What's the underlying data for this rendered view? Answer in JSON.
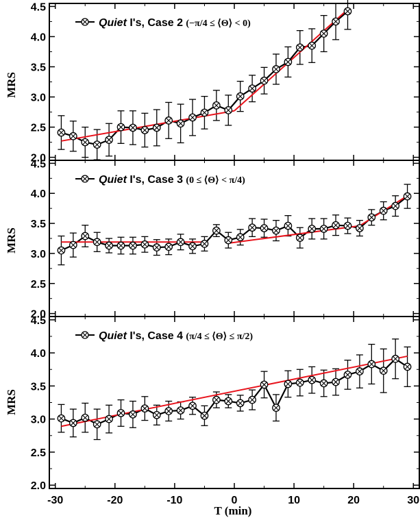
{
  "chart_data": {
    "type": "line",
    "xlabel": "T (min)",
    "ylabel": "MRS",
    "xlim": [
      -31,
      31
    ],
    "ylim": [
      1.95,
      4.55
    ],
    "x_ticks": [
      "-30",
      "-20",
      "-10",
      "0",
      "10",
      "20",
      "30"
    ],
    "y_ticks": [
      "2.0",
      "2.5",
      "3.0",
      "3.5",
      "4.0",
      "4.5"
    ],
    "grid": false,
    "legend_placement": "top-left",
    "colors": {
      "data": "#000000",
      "fit": "#e8141d"
    },
    "marker": "circle-cross",
    "panels": [
      {
        "legend": {
          "italic": "Quiet",
          "rest": " I's, Case 2",
          "condition": "(−π/4 ≤ ⟨Θ⟩ < 0)"
        },
        "x": [
          -29,
          -27,
          -25,
          -23,
          -21,
          -19,
          -17,
          -15,
          -13,
          -11,
          -9,
          -7,
          -5,
          -3,
          -1,
          1,
          3,
          5,
          7,
          9,
          11,
          13,
          15,
          17,
          19
        ],
        "y": [
          2.41,
          2.35,
          2.25,
          2.21,
          2.29,
          2.5,
          2.49,
          2.45,
          2.49,
          2.61,
          2.56,
          2.66,
          2.74,
          2.86,
          2.78,
          3.01,
          3.14,
          3.27,
          3.46,
          3.58,
          3.82,
          3.85,
          4.05,
          4.25,
          4.42
        ],
        "err": [
          0.28,
          0.25,
          0.25,
          0.25,
          0.27,
          0.27,
          0.28,
          0.28,
          0.3,
          0.3,
          0.32,
          0.3,
          0.27,
          0.25,
          0.25,
          0.25,
          0.22,
          0.22,
          0.25,
          0.25,
          0.28,
          0.28,
          0.3,
          0.3,
          0.3
        ],
        "fit": [
          [
            [
              -29,
              2.27
            ],
            [
              0,
              2.77
            ]
          ],
          [
            [
              0,
              2.77
            ],
            [
              19,
              4.45
            ]
          ]
        ]
      },
      {
        "legend": {
          "italic": "Quiet",
          "rest": " I's, Case 3",
          "condition": "(0 ≤ ⟨Θ⟩ < π/4)"
        },
        "x": [
          -29,
          -27,
          -25,
          -23,
          -21,
          -19,
          -17,
          -15,
          -13,
          -11,
          -9,
          -7,
          -5,
          -3,
          -1,
          1,
          3,
          5,
          7,
          9,
          11,
          13,
          15,
          17,
          19,
          21,
          23,
          25,
          27,
          29
        ],
        "y": [
          3.05,
          3.14,
          3.29,
          3.19,
          3.13,
          3.13,
          3.13,
          3.15,
          3.1,
          3.11,
          3.19,
          3.12,
          3.16,
          3.38,
          3.22,
          3.27,
          3.43,
          3.42,
          3.38,
          3.46,
          3.26,
          3.41,
          3.41,
          3.47,
          3.46,
          3.42,
          3.6,
          3.71,
          3.79,
          3.95
        ],
        "err": [
          0.24,
          0.2,
          0.18,
          0.16,
          0.12,
          0.14,
          0.14,
          0.13,
          0.13,
          0.13,
          0.13,
          0.12,
          0.12,
          0.1,
          0.13,
          0.13,
          0.15,
          0.15,
          0.17,
          0.17,
          0.17,
          0.17,
          0.17,
          0.17,
          0.13,
          0.13,
          0.13,
          0.15,
          0.17,
          0.2
        ],
        "fit": [
          [
            [
              -29,
              3.19
            ],
            [
              -5,
              3.19
            ]
          ],
          [
            [
              -1,
              3.17
            ],
            [
              21,
              3.46
            ]
          ],
          [
            [
              21,
              3.46
            ],
            [
              29,
              3.96
            ]
          ]
        ]
      },
      {
        "legend": {
          "italic": "Quiet",
          "rest": " I's, Case 4",
          "condition": "(π/4 ≤ ⟨Θ⟩ ≤ π/2)"
        },
        "x": [
          -29,
          -27,
          -25,
          -23,
          -21,
          -19,
          -17,
          -15,
          -13,
          -11,
          -9,
          -7,
          -5,
          -3,
          -1,
          1,
          3,
          5,
          7,
          9,
          11,
          13,
          15,
          17,
          19,
          21,
          23,
          25,
          27,
          29
        ],
        "y": [
          3.01,
          2.94,
          3.02,
          2.92,
          3.0,
          3.09,
          3.07,
          3.16,
          3.06,
          3.12,
          3.13,
          3.2,
          3.05,
          3.29,
          3.27,
          3.24,
          3.29,
          3.52,
          3.17,
          3.53,
          3.55,
          3.59,
          3.54,
          3.56,
          3.67,
          3.72,
          3.83,
          3.73,
          3.91,
          3.79
        ],
        "err": [
          0.21,
          0.21,
          0.22,
          0.23,
          0.21,
          0.2,
          0.2,
          0.18,
          0.15,
          0.15,
          0.13,
          0.13,
          0.15,
          0.12,
          0.1,
          0.12,
          0.15,
          0.2,
          0.2,
          0.2,
          0.2,
          0.2,
          0.2,
          0.2,
          0.22,
          0.25,
          0.3,
          0.33,
          0.3,
          0.3
        ],
        "fit": [
          [
            [
              -29,
              2.89
            ],
            [
              29,
              3.95
            ]
          ]
        ]
      }
    ]
  }
}
